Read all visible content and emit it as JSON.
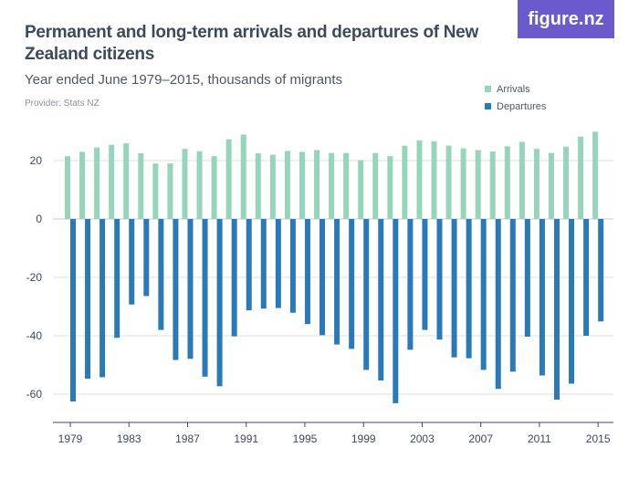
{
  "logo": "figure.nz",
  "chart_data": {
    "type": "bar",
    "title": "Permanent and long-term arrivals and departures of New Zealand citizens",
    "subtitle": "Year ended June 1979–2015, thousands of migrants",
    "provider": "Provider: Stats NZ",
    "categories": [
      1979,
      1980,
      1981,
      1982,
      1983,
      1984,
      1985,
      1986,
      1987,
      1988,
      1989,
      1990,
      1991,
      1992,
      1993,
      1994,
      1995,
      1996,
      1997,
      1998,
      1999,
      2000,
      2001,
      2002,
      2003,
      2004,
      2005,
      2006,
      2007,
      2008,
      2009,
      2010,
      2011,
      2012,
      2013,
      2014,
      2015
    ],
    "x_tick_labels": [
      "1979",
      "1983",
      "1987",
      "1991",
      "1995",
      "1999",
      "2003",
      "2007",
      "2011",
      "2015"
    ],
    "y_ticks": [
      20,
      0,
      -20,
      -40,
      -60
    ],
    "ylim": [
      -69,
      33
    ],
    "grid": true,
    "legend_position": "top-right",
    "series": [
      {
        "name": "Arrivals",
        "color": "#96d5bb",
        "values": [
          21.5,
          23.0,
          24.5,
          25.4,
          25.9,
          22.5,
          19.0,
          19.0,
          24.0,
          23.2,
          21.5,
          27.3,
          28.9,
          22.5,
          22.0,
          23.3,
          23.0,
          23.6,
          22.6,
          22.6,
          20.1,
          22.6,
          21.5,
          25.1,
          26.9,
          26.6,
          25.1,
          24.2,
          23.6,
          23.1,
          24.9,
          26.4,
          24.0,
          22.6,
          24.8,
          28.2,
          29.9
        ]
      },
      {
        "name": "Departures",
        "color": "#2a7ab8",
        "values": [
          -62.5,
          -54.7,
          -54.2,
          -40.7,
          -29.3,
          -26.4,
          -38.0,
          -48.3,
          -47.9,
          -54.0,
          -57.3,
          -40.2,
          -31.3,
          -30.7,
          -30.5,
          -32.1,
          -36.0,
          -39.8,
          -43.0,
          -44.5,
          -51.7,
          -55.3,
          -63.1,
          -44.8,
          -38.0,
          -41.3,
          -47.4,
          -47.7,
          -51.7,
          -58.2,
          -52.3,
          -40.3,
          -53.6,
          -61.9,
          -56.4,
          -40.0,
          -35.1
        ]
      }
    ]
  }
}
